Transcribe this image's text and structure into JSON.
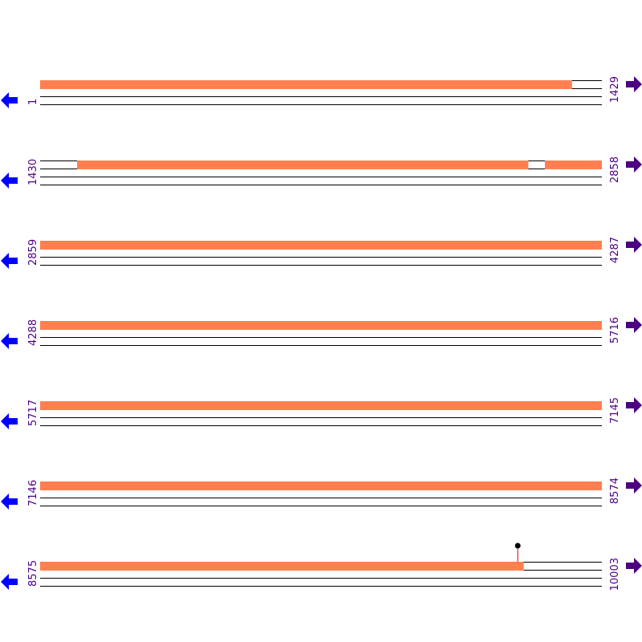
{
  "colors": {
    "feature": "#ff7f50",
    "line": "#000000",
    "label": "#4b0082",
    "left_arrow": "#0000ff",
    "right_arrow": "#4b0082",
    "marker_stem": "#cc0000",
    "marker_head": "#000000"
  },
  "icons": {
    "left": "arrow-left-icon",
    "right": "arrow-right-icon"
  },
  "sequence_length": 10003,
  "rows": [
    {
      "start": "1",
      "end": "1429",
      "features": [
        [
          1,
          1353
        ]
      ]
    },
    {
      "start": "1430",
      "end": "2858",
      "features": [
        [
          1524,
          2671
        ],
        [
          2714,
          2858
        ]
      ]
    },
    {
      "start": "2859",
      "end": "4287",
      "features": [
        [
          2859,
          4287
        ]
      ]
    },
    {
      "start": "4288",
      "end": "5716",
      "features": [
        [
          4288,
          5716
        ]
      ]
    },
    {
      "start": "5717",
      "end": "7145",
      "features": [
        [
          5717,
          7145
        ]
      ]
    },
    {
      "start": "7146",
      "end": "8574",
      "features": [
        [
          7146,
          8574
        ]
      ]
    },
    {
      "start": "8575",
      "end": "10003",
      "features": [
        [
          8575,
          9804
        ]
      ],
      "marker": 9790
    }
  ]
}
